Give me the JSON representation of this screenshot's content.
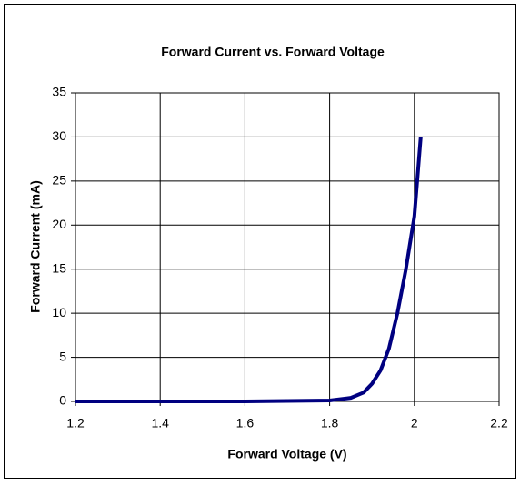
{
  "chart_data": {
    "type": "line",
    "title": "Forward Current vs. Forward Voltage",
    "x_label": "Forward Voltage (V)",
    "y_label": "Forward Current (mA)",
    "x": [
      1.2,
      1.4,
      1.6,
      1.8,
      1.85,
      1.88,
      1.9,
      1.92,
      1.94,
      1.96,
      1.98,
      2.0,
      2.015
    ],
    "series": [
      {
        "name": "Forward Current",
        "color": "#000080",
        "values": [
          0,
          0,
          0,
          0.1,
          0.4,
          1,
          2,
          3.5,
          6,
          10,
          15,
          21,
          30
        ]
      }
    ],
    "xlim": [
      1.2,
      2.2
    ],
    "xticks": [
      1.2,
      1.4,
      1.6,
      1.8,
      2,
      2.2
    ],
    "ylim": [
      0,
      35
    ],
    "yticks": [
      0,
      5,
      10,
      15,
      20,
      25,
      30,
      35
    ],
    "grid": true
  }
}
